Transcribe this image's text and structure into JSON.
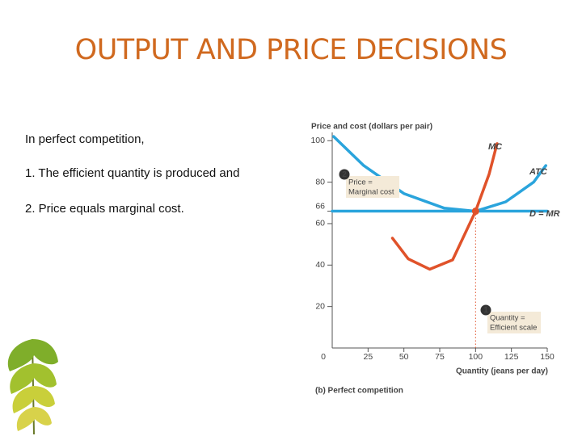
{
  "slide": {
    "title": "OUTPUT AND PRICE DECISIONS",
    "paragraphs": [
      "In perfect competition,",
      "1. The efficient quantity is produced and",
      "2. Price equals marginal cost."
    ]
  },
  "chart_data": {
    "type": "line",
    "y_label": "Price and cost (dollars per pair)",
    "x_label": "Quantity (jeans per day)",
    "caption": "(b) Perfect competition",
    "xlim": [
      0,
      150
    ],
    "xticks": [
      0,
      25,
      50,
      75,
      100,
      125,
      150
    ],
    "ylim": [
      0,
      104
    ],
    "yticks": [
      20,
      40,
      60,
      66,
      80,
      100
    ],
    "series": [
      {
        "name": "MC",
        "color": "#e0522a",
        "x": [
          42,
          53,
          68,
          84,
          100,
          109.5,
          115
        ],
        "values": [
          53,
          43,
          38,
          42.5,
          66,
          84,
          98.6
        ]
      },
      {
        "name": "ATC",
        "color": "#2aa4dc",
        "x": [
          1,
          22,
          50,
          78,
          100,
          121,
          140.5,
          149
        ],
        "values": [
          102,
          88,
          74.5,
          67.5,
          66,
          70.5,
          80,
          88
        ]
      },
      {
        "name": "D = MR",
        "color": "#2aa4dc",
        "x": [
          0,
          150
        ],
        "values": [
          66,
          66
        ]
      }
    ],
    "equilibrium": {
      "x": 100,
      "y": 66,
      "color": "#e0522a"
    },
    "annotations": [
      {
        "marker": "2",
        "lines": [
          "Price =",
          "Marginal cost"
        ]
      },
      {
        "marker": "1",
        "lines": [
          "Quantity =",
          "Efficient scale"
        ]
      }
    ]
  }
}
